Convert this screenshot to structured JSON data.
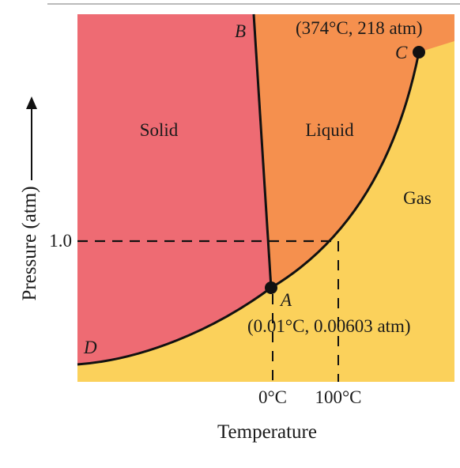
{
  "diagram": {
    "type": "phase-diagram",
    "region_labels": {
      "solid": "Solid",
      "liquid": "Liquid",
      "gas": "Gas"
    },
    "point_labels": {
      "A": "A",
      "B": "B",
      "C": "C",
      "D": "D"
    },
    "annotations": {
      "critical_point": "(374°C, 218 atm)",
      "triple_point": "(0.01°C, 0.00603 atm)"
    },
    "axes": {
      "y_label": "Pressure (atm)",
      "x_label": "Temperature",
      "y_tick": "1.0",
      "x_ticks": [
        "0°C",
        "100°C"
      ]
    },
    "colors": {
      "solid": "#ee6b73",
      "liquid": "#f5904e",
      "gas": "#fbd15b",
      "lines": "#111111"
    }
  }
}
